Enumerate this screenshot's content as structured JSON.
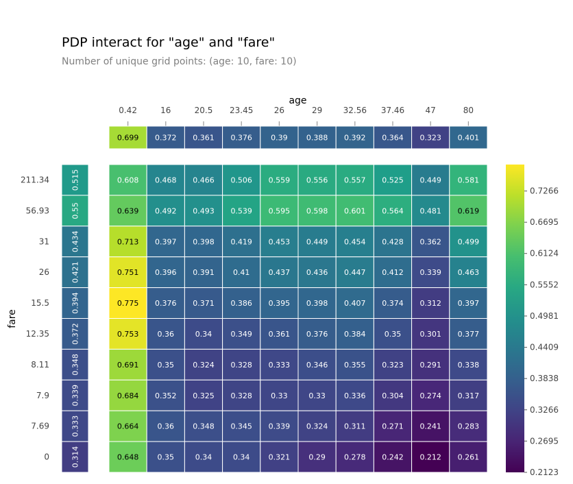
{
  "chart_data": {
    "type": "heatmap",
    "title": "PDP interact for \"age\" and \"fare\"",
    "subtitle": "Number of unique grid points: (age: 10, fare: 10)",
    "xlabel": "age",
    "ylabel": "fare",
    "x_categories": [
      "0.42",
      "16",
      "20.5",
      "23.45",
      "26",
      "29",
      "32.56",
      "37.46",
      "47",
      "80"
    ],
    "y_categories": [
      "211.34",
      "56.93",
      "31",
      "26",
      "15.5",
      "12.35",
      "8.11",
      "7.9",
      "7.69",
      "0"
    ],
    "x_marginal": [
      "0.699",
      "0.372",
      "0.361",
      "0.376",
      "0.39",
      "0.388",
      "0.392",
      "0.364",
      "0.323",
      "0.401"
    ],
    "y_marginal": [
      "0.515",
      "0.55",
      "0.434",
      "0.421",
      "0.394",
      "0.372",
      "0.348",
      "0.339",
      "0.333",
      "0.314"
    ],
    "values": [
      [
        "0.608",
        "0.468",
        "0.466",
        "0.506",
        "0.559",
        "0.556",
        "0.557",
        "0.525",
        "0.449",
        "0.581"
      ],
      [
        "0.639",
        "0.492",
        "0.493",
        "0.539",
        "0.595",
        "0.598",
        "0.601",
        "0.564",
        "0.481",
        "0.619"
      ],
      [
        "0.713",
        "0.397",
        "0.398",
        "0.419",
        "0.453",
        "0.449",
        "0.454",
        "0.428",
        "0.362",
        "0.499"
      ],
      [
        "0.751",
        "0.396",
        "0.391",
        "0.41",
        "0.437",
        "0.436",
        "0.447",
        "0.412",
        "0.339",
        "0.463"
      ],
      [
        "0.775",
        "0.376",
        "0.371",
        "0.386",
        "0.395",
        "0.398",
        "0.407",
        "0.374",
        "0.312",
        "0.397"
      ],
      [
        "0.753",
        "0.36",
        "0.34",
        "0.349",
        "0.361",
        "0.376",
        "0.384",
        "0.35",
        "0.301",
        "0.377"
      ],
      [
        "0.691",
        "0.35",
        "0.324",
        "0.328",
        "0.333",
        "0.346",
        "0.355",
        "0.323",
        "0.291",
        "0.338"
      ],
      [
        "0.684",
        "0.352",
        "0.325",
        "0.328",
        "0.33",
        "0.33",
        "0.336",
        "0.304",
        "0.274",
        "0.317"
      ],
      [
        "0.664",
        "0.36",
        "0.348",
        "0.345",
        "0.339",
        "0.324",
        "0.311",
        "0.271",
        "0.241",
        "0.283"
      ],
      [
        "0.648",
        "0.35",
        "0.34",
        "0.34",
        "0.321",
        "0.29",
        "0.278",
        "0.242",
        "0.212",
        "0.261"
      ]
    ],
    "colorbar": {
      "colormap": "viridis",
      "range": [
        0.2123,
        0.775
      ],
      "ticks": [
        "0.7266",
        "0.6695",
        "0.6124",
        "0.5552",
        "0.4981",
        "0.4409",
        "0.3838",
        "0.3266",
        "0.2695",
        "0.2123"
      ]
    },
    "grid": false,
    "legend": "colorbar-right"
  }
}
